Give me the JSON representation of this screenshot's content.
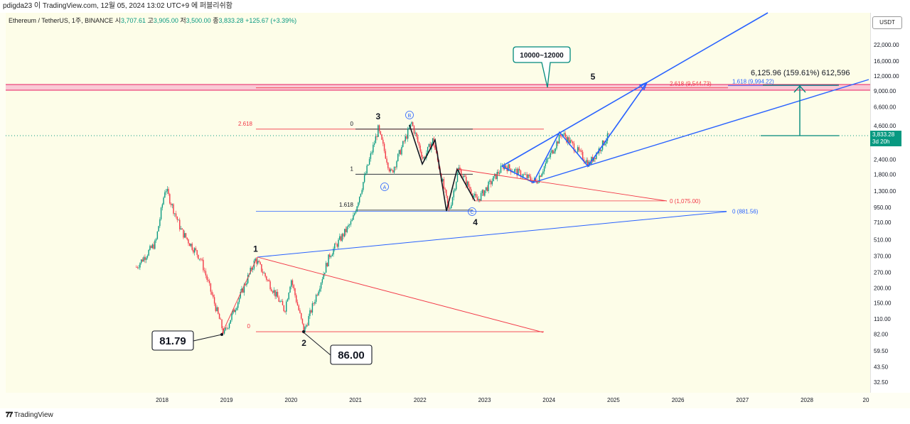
{
  "header": {
    "publisher_line": "pdigda23 이 TradingView.com, 12월 05, 2024 13:02 UTC+9 에 퍼블리쉬함"
  },
  "symbol": {
    "name": "Ethereum / TetherUS, 1주, BINANCE",
    "open_label": "시",
    "open": "3,707.61",
    "high_label": "고",
    "high": "3,905.00",
    "low_label": "저",
    "low": "3,500.00",
    "close_label": "종",
    "close": "3,833.28",
    "change": "+125.67 (+3.39%)"
  },
  "currency_button": "USDT",
  "last_price": {
    "value": "3,833.28",
    "countdown": "3d 20h",
    "color": "#089981"
  },
  "footer": {
    "brand": "TradingView"
  },
  "chart_data": {
    "type": "candlestick",
    "scale": "log",
    "y_axis_ticks": [
      "22,000.00",
      "16,000.00",
      "12,000.00",
      "9,000.00",
      "6,600.00",
      "4,600.00",
      "2,400.00",
      "1,800.00",
      "1,300.00",
      "950.00",
      "710.00",
      "510.00",
      "370.00",
      "270.00",
      "200.00",
      "150.00",
      "110.00",
      "82.00",
      "59.50",
      "43.50",
      "32.50"
    ],
    "x_axis_ticks": [
      "2018",
      "2019",
      "2020",
      "2021",
      "2022",
      "2023",
      "2024",
      "2025",
      "2026",
      "2027",
      "2028",
      "20"
    ],
    "price_path": [
      {
        "t": 2017.6,
        "p": 300
      },
      {
        "t": 2017.9,
        "p": 480
      },
      {
        "t": 2018.05,
        "p": 1400
      },
      {
        "t": 2018.3,
        "p": 600
      },
      {
        "t": 2018.6,
        "p": 350
      },
      {
        "t": 2018.96,
        "p": 82
      },
      {
        "t": 2019.45,
        "p": 350
      },
      {
        "t": 2019.9,
        "p": 130
      },
      {
        "t": 2020.0,
        "p": 240
      },
      {
        "t": 2020.2,
        "p": 86
      },
      {
        "t": 2020.6,
        "p": 380
      },
      {
        "t": 2020.95,
        "p": 730
      },
      {
        "t": 2021.35,
        "p": 4300
      },
      {
        "t": 2021.55,
        "p": 1800
      },
      {
        "t": 2021.87,
        "p": 4860
      },
      {
        "t": 2022.05,
        "p": 2400
      },
      {
        "t": 2022.2,
        "p": 3500
      },
      {
        "t": 2022.45,
        "p": 880
      },
      {
        "t": 2022.6,
        "p": 2000
      },
      {
        "t": 2022.88,
        "p": 1075
      },
      {
        "t": 2023.3,
        "p": 2140
      },
      {
        "t": 2023.8,
        "p": 1550
      },
      {
        "t": 2024.2,
        "p": 4000
      },
      {
        "t": 2024.62,
        "p": 2200
      },
      {
        "t": 2024.93,
        "p": 3833
      }
    ],
    "wave_labels": [
      {
        "label": "1",
        "t": 2019.45,
        "p": 350
      },
      {
        "label": "2",
        "t": 2020.2,
        "p": 86
      },
      {
        "label": "3",
        "t": 2021.35,
        "p": 4300
      },
      {
        "label": "4",
        "t": 2022.88,
        "p": 1075
      },
      {
        "label": "5",
        "t": 2025.6,
        "p": 10800
      }
    ],
    "sub_wave_labels": [
      {
        "label": "A",
        "t": 2021.55,
        "p": 1800
      },
      {
        "label": "B",
        "t": 2021.87,
        "p": 4860
      },
      {
        "label": "C",
        "t": 2022.88,
        "p": 1075
      }
    ],
    "fib_levels": [
      {
        "label": "0",
        "value": 86
      },
      {
        "label": "2.618",
        "value": 4300
      },
      {
        "label": "0",
        "value": 4300
      },
      {
        "label": "1",
        "value": 1800
      },
      {
        "label": "1.618",
        "value": 900
      },
      {
        "label": "0 (1,075.00)",
        "value": 1075
      },
      {
        "label": "0 (881.56)",
        "value": 881.56
      },
      {
        "label": "2.618 (9,544.73)",
        "value": 9544.73
      },
      {
        "label": "1.618 (9,994.22)",
        "value": 9994.22
      }
    ],
    "callouts": [
      {
        "text": "81.79",
        "t": 2018.96,
        "p": 81.79
      },
      {
        "text": "86.00",
        "t": 2020.2,
        "p": 86.0
      },
      {
        "text": "10000~12000",
        "t": 2023.95,
        "p": 10000
      }
    ],
    "projection_label": "6,125.96 (159.61%) 612,596",
    "colors": {
      "up": "#089981",
      "down": "#f23645",
      "channel": "#2962ff",
      "fib": "#f23645",
      "zone": "#f8bbd0"
    }
  }
}
